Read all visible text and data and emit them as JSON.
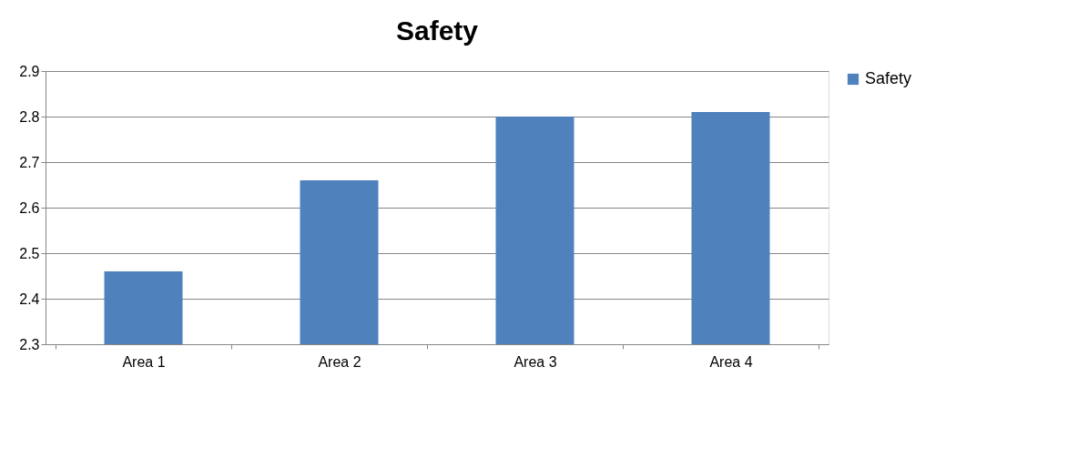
{
  "chart_data": {
    "type": "bar",
    "title": "Safety",
    "categories": [
      "Area 1",
      "Area 2",
      "Area 3",
      "Area 4"
    ],
    "series": [
      {
        "name": "Safety",
        "color": "#4f81bd",
        "values": [
          2.46,
          2.66,
          2.8,
          2.81
        ]
      }
    ],
    "ylim": [
      2.3,
      2.9
    ],
    "yticks": [
      2.3,
      2.4,
      2.5,
      2.6,
      2.7,
      2.8,
      2.9
    ],
    "grid": "y",
    "legend": "right"
  }
}
